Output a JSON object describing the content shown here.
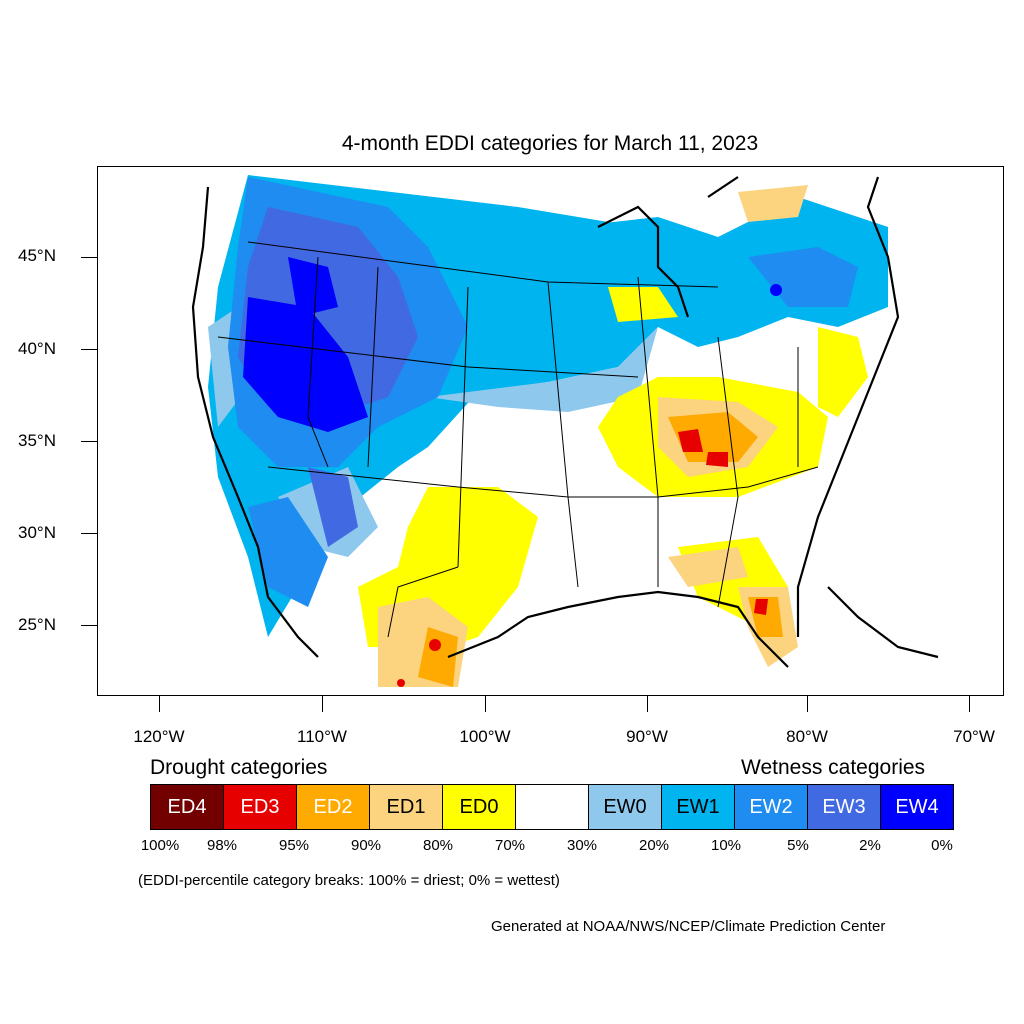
{
  "title": "4-month EDDI categories for March 11, 2023",
  "axes": {
    "lat_labels": [
      "45°N",
      "40°N",
      "35°N",
      "30°N",
      "25°N"
    ],
    "lon_labels": [
      "120°W",
      "110°W",
      "100°W",
      "90°W",
      "80°W",
      "70°W"
    ]
  },
  "legend": {
    "drought_heading": "Drought categories",
    "wetness_heading": "Wetness categories",
    "categories": [
      {
        "label": "ED4",
        "color": "#730000",
        "text_color": "#ffffff"
      },
      {
        "label": "ED3",
        "color": "#e60000",
        "text_color": "#ffffff"
      },
      {
        "label": "ED2",
        "color": "#ffaa00",
        "text_color": "#ffffff"
      },
      {
        "label": "ED1",
        "color": "#fcd37f",
        "text_color": "#000000"
      },
      {
        "label": "ED0",
        "color": "#ffff00",
        "text_color": "#000000"
      },
      {
        "label": "",
        "color": "#ffffff",
        "text_color": "#000000"
      },
      {
        "label": "EW0",
        "color": "#8ec9ed",
        "text_color": "#000000"
      },
      {
        "label": "EW1",
        "color": "#00b4f0",
        "text_color": "#000000"
      },
      {
        "label": "EW2",
        "color": "#1e8cf0",
        "text_color": "#ffffff"
      },
      {
        "label": "EW3",
        "color": "#4169e1",
        "text_color": "#ffffff"
      },
      {
        "label": "EW4",
        "color": "#0000ff",
        "text_color": "#ffffff"
      }
    ],
    "percentiles": [
      "100%",
      "98%",
      "95%",
      "90%",
      "80%",
      "70%",
      "30%",
      "20%",
      "10%",
      "5%",
      "2%",
      "0%"
    ],
    "note": "(EDDI-percentile category breaks: 100% = driest; 0% = wettest)"
  },
  "credit": "Generated at NOAA/NWS/NCEP/Climate Prediction Center"
}
